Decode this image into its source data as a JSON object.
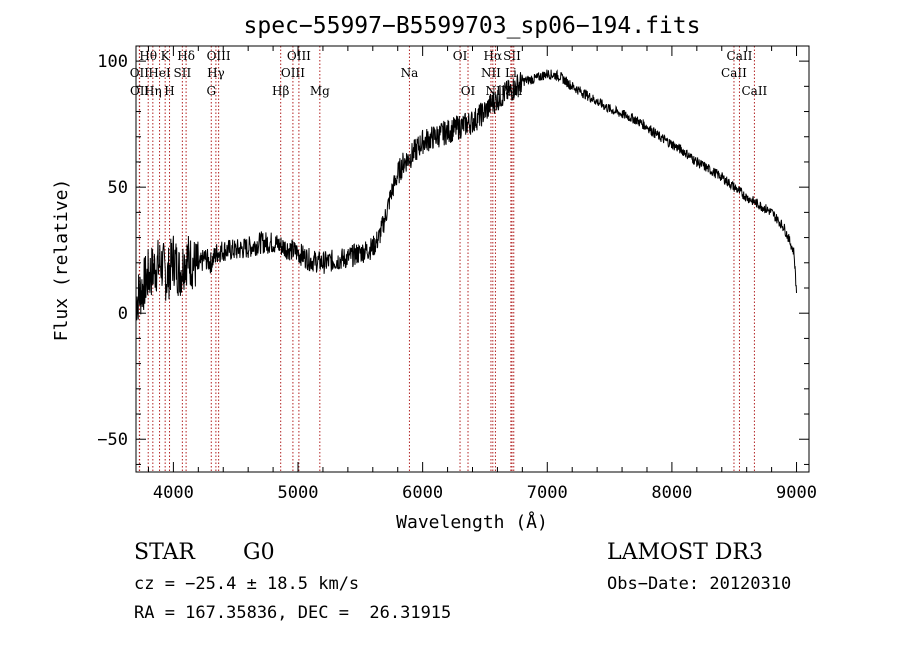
{
  "chart_data": {
    "type": "line",
    "title": "spec−55997−B5599703_sp06−194.fits",
    "xlabel": "Wavelength (Å)",
    "ylabel": "Flux (relative)",
    "xlim": [
      3700,
      9100
    ],
    "ylim": [
      -63,
      106
    ],
    "xticks": [
      4000,
      5000,
      6000,
      7000,
      8000,
      9000
    ],
    "yticks": [
      -50,
      0,
      50,
      100
    ],
    "ytick_labels": [
      "−50",
      "0",
      "50",
      "100"
    ],
    "series": [
      {
        "name": "spectrum",
        "x": [
          3700,
          3750,
          3800,
          3850,
          3900,
          3950,
          4000,
          4050,
          4100,
          4150,
          4200,
          4250,
          4300,
          4350,
          4400,
          4500,
          4600,
          4700,
          4800,
          4900,
          5000,
          5100,
          5200,
          5300,
          5400,
          5500,
          5600,
          5650,
          5700,
          5750,
          5800,
          5850,
          5900,
          5950,
          6000,
          6100,
          6200,
          6300,
          6400,
          6500,
          6550,
          6600,
          6650,
          6700,
          6800,
          6900,
          7000,
          7100,
          7200,
          7300,
          7400,
          7500,
          7600,
          7700,
          7800,
          7900,
          8000,
          8100,
          8200,
          8300,
          8400,
          8500,
          8600,
          8700,
          8800,
          8900,
          8950,
          8980,
          9000
        ],
        "y": [
          5,
          10,
          15,
          18,
          20,
          14,
          22,
          16,
          22,
          20,
          18,
          22,
          20,
          24,
          25,
          25,
          26,
          28,
          28,
          26,
          24,
          21,
          20,
          21,
          22,
          24,
          26,
          30,
          38,
          48,
          55,
          60,
          62,
          65,
          68,
          70,
          72,
          74,
          76,
          80,
          83,
          85,
          87,
          88,
          92,
          93,
          95,
          94,
          90,
          87,
          84,
          81,
          79,
          77,
          74,
          70,
          67,
          64,
          60,
          57,
          54,
          50,
          46,
          43,
          40,
          34,
          28,
          24,
          8
        ]
      }
    ],
    "lines": [
      {
        "name": "Hθ",
        "wl": 3798,
        "row": 0
      },
      {
        "name": "OII",
        "wl": 3727,
        "row": 1
      },
      {
        "name": "OII",
        "wl": 3729,
        "row": 2
      },
      {
        "name": "K",
        "wl": 3934,
        "row": 0
      },
      {
        "name": "HeI",
        "wl": 3889,
        "row": 1
      },
      {
        "name": "Hη",
        "wl": 3835,
        "row": 2
      },
      {
        "name": "H",
        "wl": 3969,
        "row": 2
      },
      {
        "name": "SII",
        "wl": 4072,
        "row": 1
      },
      {
        "name": "Hδ",
        "wl": 4102,
        "row": 0
      },
      {
        "name": "OIII",
        "wl": 4363,
        "row": 0
      },
      {
        "name": "Hγ",
        "wl": 4341,
        "row": 1
      },
      {
        "name": "G",
        "wl": 4304,
        "row": 2
      },
      {
        "name": "Hβ",
        "wl": 4861,
        "row": 2
      },
      {
        "name": "OIII",
        "wl": 4959,
        "row": 1
      },
      {
        "name": "OIII",
        "wl": 5007,
        "row": 0
      },
      {
        "name": "Mg",
        "wl": 5175,
        "row": 2
      },
      {
        "name": "Na",
        "wl": 5894,
        "row": 1
      },
      {
        "name": "OI",
        "wl": 6300,
        "row": 0
      },
      {
        "name": "OI",
        "wl": 6364,
        "row": 2
      },
      {
        "name": "Hα",
        "wl": 6563,
        "row": 0
      },
      {
        "name": "NII",
        "wl": 6548,
        "row": 1
      },
      {
        "name": "NII",
        "wl": 6584,
        "row": 2
      },
      {
        "name": "SII",
        "wl": 6717,
        "row": 0
      },
      {
        "name": "Li",
        "wl": 6708,
        "row": 1
      },
      {
        "name": "SII",
        "wl": 6731,
        "row": 2
      },
      {
        "name": "CaII",
        "wl": 8498,
        "row": 1
      },
      {
        "name": "CaII",
        "wl": 8542,
        "row": 0
      },
      {
        "name": "CaII",
        "wl": 8662,
        "row": 2
      }
    ]
  },
  "info": {
    "class": "STAR",
    "subclass": "G0",
    "survey": "LAMOST DR3",
    "cz": "cz = −25.4 ± 18.5 km/s",
    "obs_date": "Obs−Date: 20120310",
    "coords": "RA = 167.35836, DEC =  26.31915"
  }
}
